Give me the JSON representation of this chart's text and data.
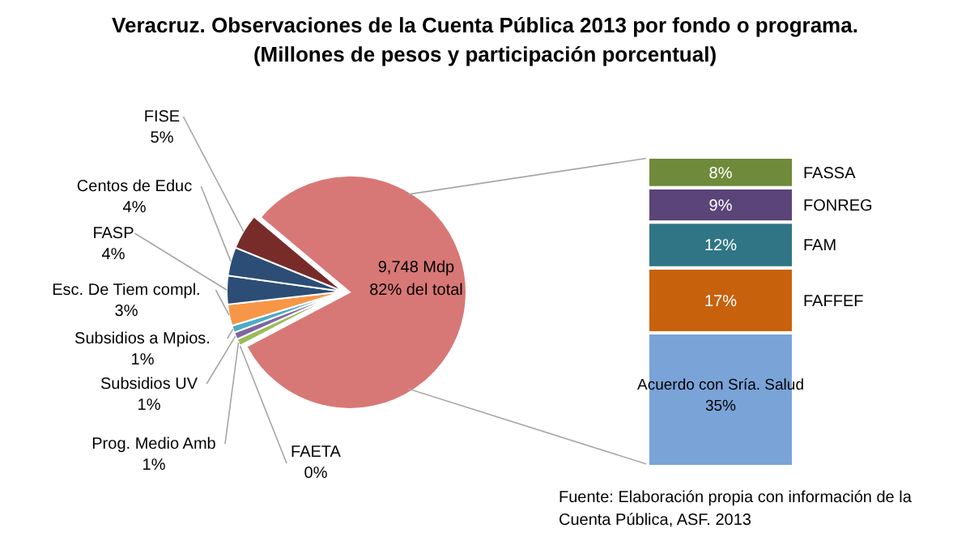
{
  "chart_data": [
    {
      "type": "pie",
      "title": "Veracruz. Observaciones de la Cuenta Pública 2013  por fondo o programa.",
      "subtitle": "(Millones  de pesos y participación porcentual)",
      "categories": [
        "9,748 Mdp",
        "FAETA",
        "Prog. Medio Amb",
        "Subsidios UV",
        "Subsidios a Mpios.",
        "Esc. De Tiem compl.",
        "FASP",
        "Centos de Educ",
        "FISE"
      ],
      "values": [
        82,
        0,
        1,
        1,
        1,
        3,
        4,
        4,
        5
      ],
      "value_labels": [
        "82% del total",
        "0%",
        "1%",
        "1%",
        "1%",
        "3%",
        "4%",
        "4%",
        "5%"
      ],
      "colors": [
        "#d87876",
        "#c0504d",
        "#9bbb59",
        "#8064a2",
        "#4bacc6",
        "#f79646",
        "#2c4d75",
        "#2c4d75",
        "#772c2a"
      ],
      "annotations": [
        "Fuente: Elaboración propia con información de la Cuenta Pública, ASF. 2013"
      ]
    },
    {
      "type": "bar",
      "stacked": true,
      "categories": [
        null
      ],
      "series": [
        {
          "name": "Acuerdo con Sría. Salud",
          "color": "#7aa3d8",
          "values": [
            35
          ],
          "value_labels": [
            "35%"
          ]
        },
        {
          "name": "FAFFEF",
          "color": "#c8610c",
          "values": [
            17
          ],
          "value_labels": [
            "17%"
          ]
        },
        {
          "name": "FAM",
          "color": "#2f7585",
          "values": [
            12
          ],
          "value_labels": [
            "12%"
          ]
        },
        {
          "name": "FONREG",
          "color": "#5a4478",
          "values": [
            9
          ],
          "value_labels": [
            "9%"
          ]
        },
        {
          "name": "FASSA",
          "color": "#6f8a3a",
          "values": [
            8
          ],
          "value_labels": [
            "8%"
          ]
        }
      ]
    }
  ]
}
